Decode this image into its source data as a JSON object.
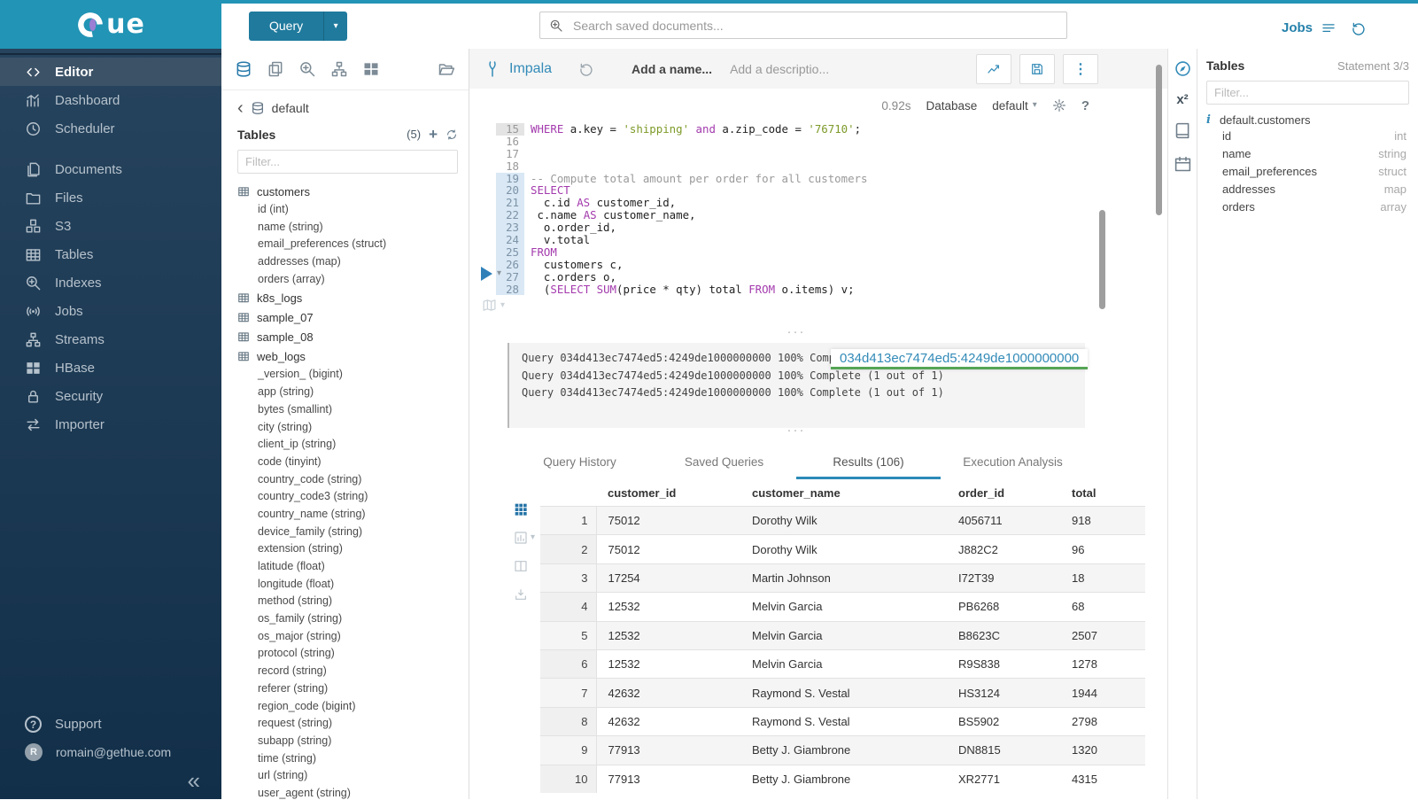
{
  "brand": {
    "logo_text": "ue"
  },
  "sidebar": {
    "items": [
      {
        "label": "Editor",
        "icon": "code-icon",
        "active": true,
        "gap": false
      },
      {
        "label": "Dashboard",
        "icon": "dashboard-icon",
        "active": false,
        "gap": false
      },
      {
        "label": "Scheduler",
        "icon": "scheduler-icon",
        "active": false,
        "gap": false
      },
      {
        "label": "Documents",
        "icon": "documents-icon",
        "active": false,
        "gap": true
      },
      {
        "label": "Files",
        "icon": "files-icon",
        "active": false,
        "gap": false
      },
      {
        "label": "S3",
        "icon": "s3-icon",
        "active": false,
        "gap": false
      },
      {
        "label": "Tables",
        "icon": "tables-icon",
        "active": false,
        "gap": false
      },
      {
        "label": "Indexes",
        "icon": "indexes-icon",
        "active": false,
        "gap": false
      },
      {
        "label": "Jobs",
        "icon": "jobs-icon",
        "active": false,
        "gap": false
      },
      {
        "label": "Streams",
        "icon": "streams-icon",
        "active": false,
        "gap": false
      },
      {
        "label": "HBase",
        "icon": "hbase-icon",
        "active": false,
        "gap": false
      },
      {
        "label": "Security",
        "icon": "security-icon",
        "active": false,
        "gap": false
      },
      {
        "label": "Importer",
        "icon": "importer-icon",
        "active": false,
        "gap": false
      }
    ],
    "support_label": "Support",
    "user_initial": "R",
    "user_email": "romain@gethue.com",
    "collapse_glyph": "«"
  },
  "topbar": {
    "query_label": "Query",
    "search_placeholder": "Search saved documents...",
    "jobs_label": "Jobs"
  },
  "left_panel": {
    "back_glyph": "‹",
    "database": "default",
    "tables_label": "Tables",
    "tables_count": "(5)",
    "filter_placeholder": "Filter...",
    "tables": [
      {
        "name": "customers",
        "columns": [
          "id (int)",
          "name (string)",
          "email_preferences (struct)",
          "addresses (map)",
          "orders (array)"
        ]
      },
      {
        "name": "k8s_logs",
        "columns": []
      },
      {
        "name": "sample_07",
        "columns": []
      },
      {
        "name": "sample_08",
        "columns": []
      },
      {
        "name": "web_logs",
        "columns": [
          "_version_ (bigint)",
          "app (string)",
          "bytes (smallint)",
          "city (string)",
          "client_ip (string)",
          "code (tinyint)",
          "country_code (string)",
          "country_code3 (string)",
          "country_name (string)",
          "device_family (string)",
          "extension (string)",
          "latitude (float)",
          "longitude (float)",
          "method (string)",
          "os_family (string)",
          "os_major (string)",
          "protocol (string)",
          "record (string)",
          "referer (string)",
          "region_code (bigint)",
          "request (string)",
          "subapp (string)",
          "time (string)",
          "url (string)",
          "user_agent (string)"
        ]
      }
    ]
  },
  "editor": {
    "engine": "Impala",
    "name_placeholder": "Add a name...",
    "description_placeholder": "Add a descriptio...",
    "duration": "0.92s",
    "database_label": "Database",
    "database_value": "default",
    "code_lines": [
      {
        "n": "15",
        "hl": "active",
        "seg": [
          [
            "kw",
            "WHERE"
          ],
          [
            "pl",
            " a.key = "
          ],
          [
            "str",
            "'shipping'"
          ],
          [
            "pl",
            " "
          ],
          [
            "kw",
            "and"
          ],
          [
            "pl",
            " a.zip_code = "
          ],
          [
            "str",
            "'76710'"
          ],
          [
            "pl",
            ";"
          ]
        ]
      },
      {
        "n": "16",
        "hl": "",
        "seg": []
      },
      {
        "n": "17",
        "hl": "",
        "seg": []
      },
      {
        "n": "18",
        "hl": "",
        "seg": []
      },
      {
        "n": "19",
        "hl": "stmt",
        "seg": [
          [
            "cmt",
            "-- Compute total amount per order for all customers"
          ]
        ]
      },
      {
        "n": "20",
        "hl": "stmt",
        "seg": [
          [
            "kw",
            "SELECT"
          ]
        ]
      },
      {
        "n": "21",
        "hl": "stmt",
        "seg": [
          [
            "pl",
            "  c.id "
          ],
          [
            "kw",
            "AS"
          ],
          [
            "pl",
            " customer_id,"
          ]
        ]
      },
      {
        "n": "22",
        "hl": "stmt",
        "seg": [
          [
            "pl",
            " c.name "
          ],
          [
            "kw",
            "AS"
          ],
          [
            "pl",
            " customer_name,"
          ]
        ]
      },
      {
        "n": "23",
        "hl": "stmt",
        "seg": [
          [
            "pl",
            "  o.order_id,"
          ]
        ]
      },
      {
        "n": "24",
        "hl": "stmt",
        "seg": [
          [
            "pl",
            "  v.total"
          ]
        ]
      },
      {
        "n": "25",
        "hl": "stmt",
        "seg": [
          [
            "kw",
            "FROM"
          ]
        ]
      },
      {
        "n": "26",
        "hl": "stmt",
        "seg": [
          [
            "pl",
            "  customers c,"
          ]
        ]
      },
      {
        "n": "27",
        "hl": "stmt",
        "seg": [
          [
            "pl",
            "  c.orders o,"
          ]
        ]
      },
      {
        "n": "28",
        "hl": "stmt",
        "seg": [
          [
            "pl",
            "  ("
          ],
          [
            "kw",
            "SELECT"
          ],
          [
            "pl",
            " "
          ],
          [
            "kw",
            "SUM"
          ],
          [
            "pl",
            "(price * qty) total "
          ],
          [
            "kw",
            "FROM"
          ],
          [
            "pl",
            " o.items) v;"
          ]
        ]
      }
    ]
  },
  "log": {
    "lines": [
      "Query 034d413ec7474ed5:4249de1000000000 100% Complete (1 out of 1)",
      "Query 034d413ec7474ed5:4249de1000000000 100% Complete (1 out of 1)",
      "Query 034d413ec7474ed5:4249de1000000000 100% Complete (1 out of 1)"
    ],
    "tooltip": "034d413ec7474ed5:4249de1000000000"
  },
  "tabs": [
    {
      "label": "Query History",
      "active": false
    },
    {
      "label": "Saved Queries",
      "active": false
    },
    {
      "label": "Results (106)",
      "active": true
    },
    {
      "label": "Execution Analysis",
      "active": false
    }
  ],
  "results": {
    "columns": [
      "customer_id",
      "customer_name",
      "order_id",
      "total"
    ],
    "rows": [
      [
        "1",
        "75012",
        "Dorothy Wilk",
        "4056711",
        "918"
      ],
      [
        "2",
        "75012",
        "Dorothy Wilk",
        "J882C2",
        "96"
      ],
      [
        "3",
        "17254",
        "Martin Johnson",
        "I72T39",
        "18"
      ],
      [
        "4",
        "12532",
        "Melvin Garcia",
        "PB6268",
        "68"
      ],
      [
        "5",
        "12532",
        "Melvin Garcia",
        "B8623C",
        "2507"
      ],
      [
        "6",
        "12532",
        "Melvin Garcia",
        "R9S838",
        "1278"
      ],
      [
        "7",
        "42632",
        "Raymond S. Vestal",
        "HS3124",
        "1944"
      ],
      [
        "8",
        "42632",
        "Raymond S. Vestal",
        "BS5902",
        "2798"
      ],
      [
        "9",
        "77913",
        "Betty J. Giambrone",
        "DN8815",
        "1320"
      ],
      [
        "10",
        "77913",
        "Betty J. Giambrone",
        "XR2771",
        "4315"
      ]
    ]
  },
  "right_panel": {
    "title": "Tables",
    "statement": "Statement 3/3",
    "filter_placeholder": "Filter...",
    "table_name": "default.customers",
    "columns": [
      {
        "name": "id",
        "type": "int"
      },
      {
        "name": "name",
        "type": "string"
      },
      {
        "name": "email_preferences",
        "type": "struct"
      },
      {
        "name": "addresses",
        "type": "map"
      },
      {
        "name": "orders",
        "type": "array"
      }
    ]
  }
}
